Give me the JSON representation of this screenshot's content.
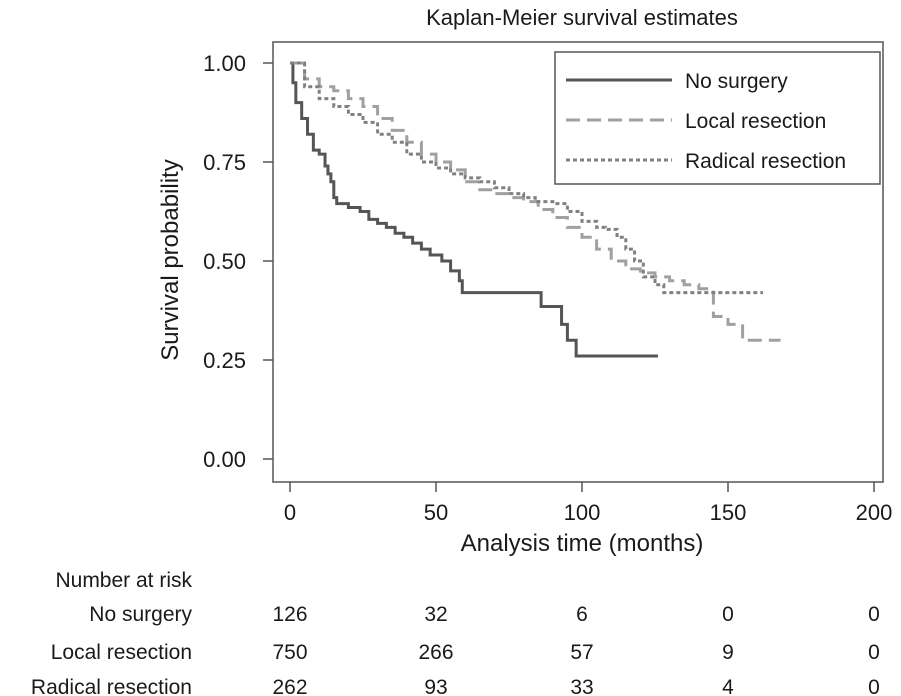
{
  "chart_data": {
    "type": "line",
    "title": "Kaplan-Meier survival estimates",
    "xlabel": "Analysis time (months)",
    "ylabel": "Survival probability",
    "xlim": [
      0,
      200
    ],
    "ylim": [
      0,
      1
    ],
    "x_ticks": [
      0,
      50,
      100,
      150,
      200
    ],
    "y_ticks": [
      0,
      0.25,
      0.5,
      0.75,
      1.0
    ],
    "x_tick_labels": [
      "0",
      "50",
      "100",
      "150",
      "200"
    ],
    "y_tick_labels": [
      "0.00",
      "0.25",
      "0.50",
      "0.75",
      "1.00"
    ],
    "grid": false,
    "legend_position": "top-right",
    "series": [
      {
        "name": "No surgery",
        "color": "#555555",
        "dash": "solid",
        "steps": [
          [
            0,
            1.0
          ],
          [
            1,
            0.95
          ],
          [
            2,
            0.9
          ],
          [
            4,
            0.86
          ],
          [
            6,
            0.82
          ],
          [
            8,
            0.78
          ],
          [
            10,
            0.77
          ],
          [
            12,
            0.74
          ],
          [
            13,
            0.72
          ],
          [
            14,
            0.7
          ],
          [
            15,
            0.66
          ],
          [
            16,
            0.645
          ],
          [
            20,
            0.635
          ],
          [
            24,
            0.625
          ],
          [
            27,
            0.605
          ],
          [
            30,
            0.595
          ],
          [
            33,
            0.585
          ],
          [
            36,
            0.57
          ],
          [
            39,
            0.56
          ],
          [
            42,
            0.545
          ],
          [
            45,
            0.53
          ],
          [
            48,
            0.515
          ],
          [
            52,
            0.5
          ],
          [
            55,
            0.475
          ],
          [
            58,
            0.45
          ],
          [
            59,
            0.42
          ],
          [
            86,
            0.385
          ],
          [
            93,
            0.34
          ],
          [
            95,
            0.3
          ],
          [
            98,
            0.26
          ],
          [
            126,
            0.26
          ]
        ]
      },
      {
        "name": "Local resection",
        "color": "#a0a0a0",
        "dash": "long-dash",
        "steps": [
          [
            0,
            1.0
          ],
          [
            5,
            0.96
          ],
          [
            10,
            0.94
          ],
          [
            15,
            0.93
          ],
          [
            20,
            0.91
          ],
          [
            25,
            0.89
          ],
          [
            30,
            0.86
          ],
          [
            35,
            0.83
          ],
          [
            40,
            0.8
          ],
          [
            45,
            0.77
          ],
          [
            50,
            0.75
          ],
          [
            55,
            0.73
          ],
          [
            60,
            0.7
          ],
          [
            65,
            0.68
          ],
          [
            70,
            0.67
          ],
          [
            75,
            0.66
          ],
          [
            80,
            0.65
          ],
          [
            85,
            0.63
          ],
          [
            90,
            0.61
          ],
          [
            95,
            0.585
          ],
          [
            100,
            0.56
          ],
          [
            105,
            0.53
          ],
          [
            110,
            0.5
          ],
          [
            115,
            0.48
          ],
          [
            120,
            0.47
          ],
          [
            125,
            0.46
          ],
          [
            130,
            0.45
          ],
          [
            135,
            0.44
          ],
          [
            140,
            0.43
          ],
          [
            145,
            0.36
          ],
          [
            150,
            0.34
          ],
          [
            155,
            0.3
          ],
          [
            168,
            0.3
          ]
        ]
      },
      {
        "name": "Radical resection",
        "color": "#808080",
        "dash": "dotted",
        "steps": [
          [
            0,
            1.0
          ],
          [
            5,
            0.94
          ],
          [
            10,
            0.91
          ],
          [
            15,
            0.89
          ],
          [
            20,
            0.87
          ],
          [
            25,
            0.85
          ],
          [
            30,
            0.82
          ],
          [
            35,
            0.8
          ],
          [
            40,
            0.77
          ],
          [
            45,
            0.75
          ],
          [
            50,
            0.735
          ],
          [
            55,
            0.72
          ],
          [
            60,
            0.71
          ],
          [
            65,
            0.7
          ],
          [
            70,
            0.685
          ],
          [
            75,
            0.67
          ],
          [
            80,
            0.66
          ],
          [
            84,
            0.65
          ],
          [
            90,
            0.645
          ],
          [
            95,
            0.625
          ],
          [
            100,
            0.6
          ],
          [
            105,
            0.585
          ],
          [
            108,
            0.58
          ],
          [
            112,
            0.56
          ],
          [
            115,
            0.53
          ],
          [
            118,
            0.5
          ],
          [
            121,
            0.46
          ],
          [
            125,
            0.44
          ],
          [
            128,
            0.42
          ],
          [
            162,
            0.42
          ]
        ]
      }
    ],
    "risk_table": {
      "title": "Number at risk",
      "rows": [
        {
          "label": "No surgery",
          "values": [
            "126",
            "32",
            "6",
            "0",
            "0"
          ]
        },
        {
          "label": "Local resection",
          "values": [
            "750",
            "266",
            "57",
            "9",
            "0"
          ]
        },
        {
          "label": "Radical resection",
          "values": [
            "262",
            "93",
            "33",
            "4",
            "0"
          ]
        }
      ]
    }
  }
}
